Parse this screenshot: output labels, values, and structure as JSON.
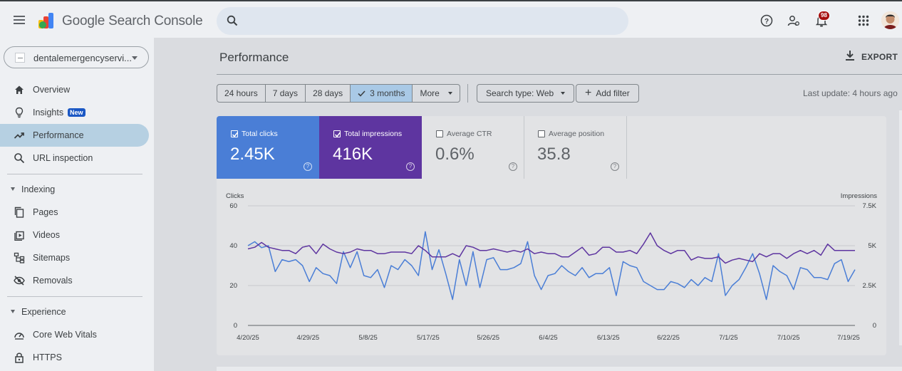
{
  "app": {
    "title": "Google Search Console"
  },
  "search": {
    "placeholder": "",
    "value": ""
  },
  "notifications": {
    "count": "98"
  },
  "colors": {
    "clicks": "#4a7ed6",
    "impressions": "#5e35a0",
    "active_nav": "#b6d0e2"
  },
  "property": {
    "name": "dentalemergencyservi..."
  },
  "sidebar": {
    "items": [
      {
        "label": "Overview",
        "icon": "home-icon"
      },
      {
        "label": "Insights",
        "icon": "lightbulb-icon",
        "badge": "New"
      },
      {
        "label": "Performance",
        "icon": "trending-icon",
        "active": true
      },
      {
        "label": "URL inspection",
        "icon": "search-icon"
      }
    ],
    "indexing": {
      "label": "Indexing",
      "items": [
        {
          "label": "Pages",
          "icon": "pages-icon"
        },
        {
          "label": "Videos",
          "icon": "video-icon"
        },
        {
          "label": "Sitemaps",
          "icon": "sitemap-icon"
        },
        {
          "label": "Removals",
          "icon": "eye-off-icon"
        }
      ]
    },
    "experience": {
      "label": "Experience",
      "items": [
        {
          "label": "Core Web Vitals",
          "icon": "gauge-icon"
        },
        {
          "label": "HTTPS",
          "icon": "lock-icon"
        }
      ]
    }
  },
  "main": {
    "title": "Performance",
    "export_label": "EXPORT",
    "ranges": [
      "24 hours",
      "7 days",
      "28 days",
      "3 months",
      "More"
    ],
    "selected_range": "3 months",
    "search_type": "Search type: Web",
    "add_filter": "Add filter",
    "last_update": "Last update: 4 hours ago"
  },
  "metrics": [
    {
      "label": "Total clicks",
      "value": "2.45K",
      "checked": true
    },
    {
      "label": "Total impressions",
      "value": "416K",
      "checked": true
    },
    {
      "label": "Average CTR",
      "value": "0.6%",
      "checked": false
    },
    {
      "label": "Average position",
      "value": "35.8",
      "checked": false
    }
  ],
  "chart_data": {
    "type": "line",
    "ylabel": "Clicks",
    "y2label": "Impressions",
    "ylim": [
      0,
      60
    ],
    "y2lim": [
      0,
      7500
    ],
    "yticks": [
      "0",
      "20",
      "40",
      "60"
    ],
    "y2ticks": [
      "0",
      "2.5K",
      "5K",
      "7.5K"
    ],
    "xtick_labels": [
      "4/20/25",
      "4/29/25",
      "5/8/25",
      "5/17/25",
      "5/26/25",
      "6/4/25",
      "6/13/25",
      "6/22/25",
      "7/1/25",
      "7/10/25",
      "7/19/25"
    ],
    "grid": true,
    "series": [
      {
        "name": "Clicks",
        "axis": "left",
        "values": [
          40,
          42,
          39,
          40,
          27,
          33,
          32,
          33,
          30,
          22,
          29,
          26,
          25,
          21,
          37,
          29,
          37,
          25,
          24,
          28,
          19,
          30,
          28,
          33,
          30,
          25,
          47,
          28,
          38,
          26,
          13,
          33,
          20,
          37,
          19,
          33,
          34,
          28,
          28,
          29,
          31,
          42,
          25,
          18,
          25,
          26,
          30,
          27,
          25,
          29,
          24,
          26,
          26,
          29,
          15,
          32,
          30,
          29,
          22,
          20,
          18,
          18,
          22,
          21,
          19,
          23,
          20,
          24,
          22,
          36,
          15,
          20,
          23,
          29,
          36,
          26,
          13,
          30,
          27,
          25,
          18,
          29,
          28,
          24,
          24,
          23,
          31,
          33,
          22,
          28
        ]
      },
      {
        "name": "Impressions",
        "axis": "right",
        "values": [
          4800,
          4900,
          5200,
          4900,
          4800,
          4700,
          4700,
          4500,
          4900,
          5000,
          4500,
          5100,
          4800,
          4600,
          4500,
          4600,
          4800,
          4700,
          4700,
          4500,
          4500,
          4600,
          4600,
          4600,
          4500,
          5000,
          4700,
          4300,
          4300,
          4300,
          4500,
          4300,
          5000,
          4900,
          4700,
          4700,
          4800,
          4700,
          4600,
          4700,
          4600,
          4800,
          4500,
          4600,
          4500,
          4500,
          4300,
          4300,
          4600,
          4900,
          4400,
          4500,
          4900,
          4900,
          4600,
          4600,
          4700,
          4500,
          5100,
          5800,
          5000,
          4700,
          4500,
          4700,
          4700,
          4100,
          4300,
          4200,
          4200,
          4300,
          3900,
          4100,
          4200,
          4100,
          4000,
          4500,
          4300,
          4500,
          4500,
          4200,
          4500,
          4700,
          4500,
          4700,
          4400,
          5100,
          4700,
          4700,
          4700,
          4700
        ]
      }
    ]
  }
}
